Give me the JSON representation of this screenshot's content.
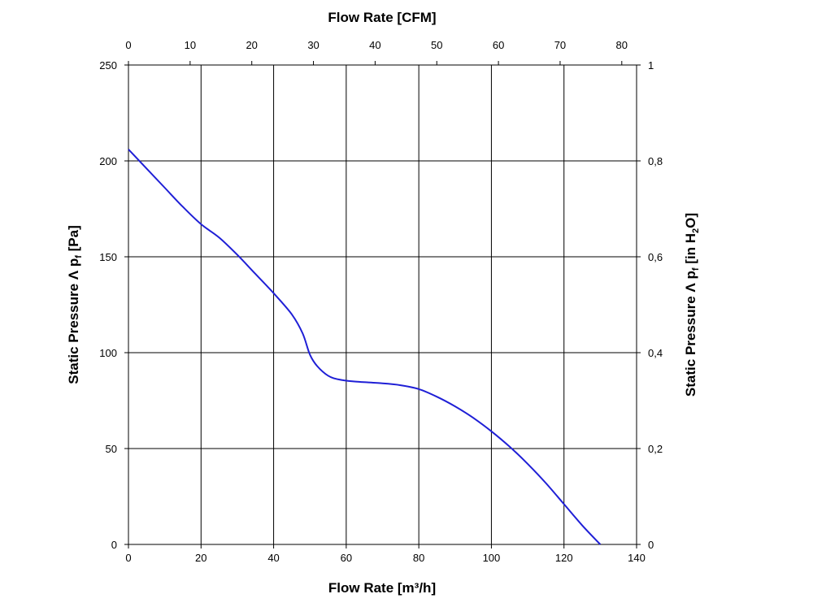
{
  "chart_data": {
    "type": "line",
    "title": "",
    "x_bottom": {
      "label": "Flow Rate [m³/h]",
      "range": [
        0,
        140
      ],
      "ticks": [
        "0",
        "20",
        "40",
        "60",
        "80",
        "100",
        "120",
        "140"
      ]
    },
    "x_top": {
      "label": "Flow Rate [CFM]",
      "range": [
        0,
        82.4
      ],
      "ticks": [
        "0",
        "10",
        "20",
        "30",
        "40",
        "50",
        "60",
        "70",
        "80"
      ]
    },
    "y_left": {
      "label_main": "Static Pressure Λ p",
      "label_sub": "f",
      "label_unit": " [Pa]",
      "range": [
        0,
        250
      ],
      "ticks": [
        "0",
        "50",
        "100",
        "150",
        "200",
        "250"
      ]
    },
    "y_right": {
      "label_main": "Static Pressure Λ p",
      "label_sub": "f",
      "label_unit_pre": " [in H",
      "label_unit_sub": "2",
      "label_unit_post": "O]",
      "range": [
        0,
        1
      ],
      "ticks": [
        "0",
        "0,2",
        "0,4",
        "0,6",
        "0,8",
        "1"
      ]
    },
    "grid": true,
    "line_color": "#1f1fd6",
    "series": [
      {
        "x": [
          0,
          5,
          10,
          15,
          20,
          25,
          30,
          35,
          40,
          45,
          48,
          50,
          52,
          55,
          58,
          62,
          70,
          75,
          80,
          85,
          90,
          95,
          100,
          105,
          110,
          115,
          120,
          125,
          130
        ],
        "y": [
          206,
          196,
          186,
          176,
          167,
          160,
          151,
          141,
          131,
          120,
          110,
          99,
          93,
          88,
          86,
          85,
          84,
          83,
          81,
          77,
          72,
          66,
          59,
          51,
          42,
          32,
          21,
          10,
          0
        ]
      }
    ]
  }
}
